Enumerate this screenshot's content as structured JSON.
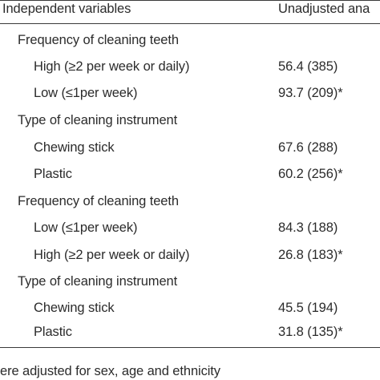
{
  "header": {
    "col1": "Independent variables",
    "col2": "Unadjusted ana"
  },
  "rows": [
    {
      "kind": "group",
      "label": "Frequency of cleaning teeth",
      "value": ""
    },
    {
      "kind": "sub",
      "label": "High (≥2 per week or daily)",
      "value": "56.4 (385)"
    },
    {
      "kind": "sub",
      "label": "Low (≤1per week)",
      "value": "93.7 (209)*"
    },
    {
      "kind": "group",
      "label": "Type of cleaning instrument",
      "value": ""
    },
    {
      "kind": "sub",
      "label": "Chewing stick",
      "value": "67.6 (288)"
    },
    {
      "kind": "sub",
      "label": "Plastic",
      "value": "60.2 (256)*"
    },
    {
      "kind": "group",
      "label": "Frequency of cleaning teeth",
      "value": ""
    },
    {
      "kind": "sub",
      "label": "Low (≤1per week)",
      "value": "84.3 (188)"
    },
    {
      "kind": "sub",
      "label": "High (≥2 per week or daily)",
      "value": "26.8 (183)*"
    },
    {
      "kind": "group",
      "label": "Type of cleaning instrument",
      "value": ""
    },
    {
      "kind": "sub",
      "label": "Chewing stick",
      "value": "45.5 (194)"
    },
    {
      "kind": "sub",
      "label": "Plastic",
      "value": "31.8 (135)*"
    }
  ],
  "footnote": "ere adjusted for sex, age and ethnicity"
}
